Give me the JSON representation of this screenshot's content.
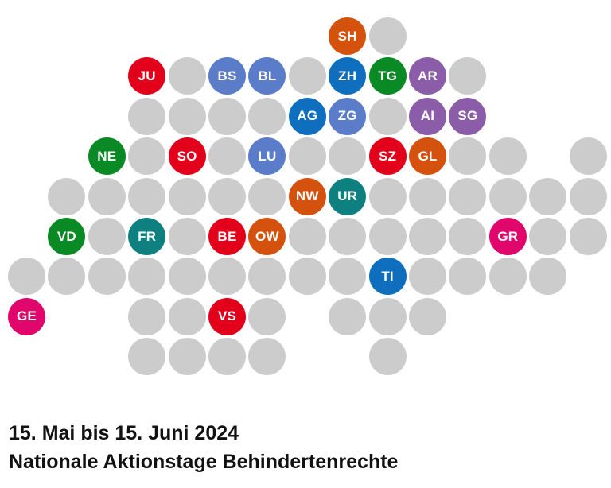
{
  "colors": {
    "empty": "#cccccc",
    "red": "#e3001b",
    "blue": "#0f6fbe",
    "lightblue": "#5b7cc9",
    "green": "#0a8a25",
    "orange": "#d4520d",
    "purple": "#8b5da8",
    "teal": "#0e8080",
    "magenta": "#e0066c"
  },
  "rows": [
    {
      "cols": [
        8,
        9
      ],
      "cantons": {
        "8": {
          "label": "SH",
          "color": "orange"
        }
      }
    },
    {
      "cols": [
        3,
        4,
        5,
        6,
        7,
        8,
        9,
        10,
        11
      ],
      "cantons": {
        "3": {
          "label": "JU",
          "color": "red"
        },
        "5": {
          "label": "BS",
          "color": "lightblue"
        },
        "6": {
          "label": "BL",
          "color": "lightblue"
        },
        "8": {
          "label": "ZH",
          "color": "blue"
        },
        "9": {
          "label": "TG",
          "color": "green"
        },
        "10": {
          "label": "AR",
          "color": "purple"
        }
      }
    },
    {
      "cols": [
        3,
        4,
        5,
        6,
        7,
        8,
        9,
        10,
        11
      ],
      "cantons": {
        "7": {
          "label": "AG",
          "color": "blue"
        },
        "8": {
          "label": "ZG",
          "color": "lightblue"
        },
        "10": {
          "label": "AI",
          "color": "purple"
        },
        "11": {
          "label": "SG",
          "color": "purple"
        }
      }
    },
    {
      "cols": [
        2,
        3,
        4,
        5,
        6,
        7,
        8,
        9,
        10,
        11,
        12,
        14
      ],
      "cantons": {
        "2": {
          "label": "NE",
          "color": "green"
        },
        "4": {
          "label": "SO",
          "color": "red"
        },
        "6": {
          "label": "LU",
          "color": "lightblue"
        },
        "9": {
          "label": "SZ",
          "color": "red"
        },
        "10": {
          "label": "GL",
          "color": "orange"
        }
      }
    },
    {
      "cols": [
        1,
        2,
        3,
        4,
        5,
        6,
        7,
        8,
        9,
        10,
        11,
        12,
        13,
        14
      ],
      "cantons": {
        "7": {
          "label": "NW",
          "color": "orange"
        },
        "8": {
          "label": "UR",
          "color": "teal"
        }
      }
    },
    {
      "cols": [
        1,
        2,
        3,
        4,
        5,
        6,
        7,
        8,
        9,
        10,
        11,
        12,
        13,
        14
      ],
      "cantons": {
        "1": {
          "label": "VD",
          "color": "green"
        },
        "3": {
          "label": "FR",
          "color": "teal"
        },
        "5": {
          "label": "BE",
          "color": "red"
        },
        "6": {
          "label": "OW",
          "color": "orange"
        },
        "12": {
          "label": "GR",
          "color": "magenta"
        }
      }
    },
    {
      "cols": [
        0,
        1,
        2,
        3,
        4,
        5,
        6,
        7,
        8,
        9,
        10,
        11,
        12,
        13
      ],
      "cantons": {
        "9": {
          "label": "TI",
          "color": "blue"
        }
      }
    },
    {
      "cols": [
        0,
        3,
        4,
        5,
        6,
        8,
        9,
        10
      ],
      "cantons": {
        "0": {
          "label": "GE",
          "color": "magenta"
        },
        "5": {
          "label": "VS",
          "color": "red"
        }
      }
    },
    {
      "cols": [
        3,
        4,
        5,
        6,
        9
      ],
      "cantons": {}
    }
  ],
  "caption": {
    "date_line": "15. Mai bis 15. Juni 2024",
    "title_line": "Nationale Aktionstage Behindertenrechte"
  }
}
